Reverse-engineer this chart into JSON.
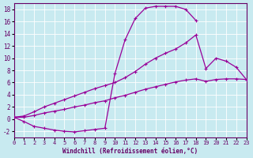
{
  "bg_color": "#c8eaf0",
  "line_color": "#990099",
  "grid_color": "#ffffff",
  "xlim": [
    0,
    23
  ],
  "ylim": [
    -3,
    19
  ],
  "xticks": [
    0,
    1,
    2,
    3,
    4,
    5,
    6,
    7,
    8,
    9,
    10,
    11,
    12,
    13,
    14,
    15,
    16,
    17,
    18,
    19,
    20,
    21,
    22,
    23
  ],
  "yticks": [
    -2,
    0,
    2,
    4,
    6,
    8,
    10,
    12,
    14,
    16,
    18
  ],
  "xlabel": "Windchill (Refroidissement éolien,°C)",
  "curve1_x": [
    0,
    1,
    2,
    3,
    4,
    5,
    6,
    7,
    8,
    9,
    10,
    11,
    12,
    13,
    14,
    15,
    16,
    17,
    18
  ],
  "curve1_y": [
    0.3,
    -0.4,
    -1.2,
    -1.5,
    -1.8,
    -2.0,
    -2.1,
    -1.9,
    -1.7,
    -1.5,
    7.5,
    13.0,
    16.5,
    18.2,
    18.5,
    18.5,
    18.5,
    18.0,
    16.2
  ],
  "curve2_x": [
    0,
    1,
    2,
    3,
    4,
    5,
    6,
    7,
    8,
    9,
    10,
    11,
    12,
    13,
    14,
    15,
    16,
    17,
    18,
    19,
    20,
    21,
    22,
    23
  ],
  "curve2_y": [
    0.3,
    0.5,
    1.2,
    2.0,
    2.6,
    3.2,
    3.8,
    4.4,
    5.0,
    5.5,
    6.0,
    6.8,
    7.8,
    9.0,
    10.0,
    10.8,
    11.5,
    12.5,
    13.8,
    8.3,
    10.0,
    9.5,
    8.5,
    6.5
  ],
  "curve3_x": [
    0,
    1,
    2,
    3,
    4,
    5,
    6,
    7,
    8,
    9,
    10,
    11,
    12,
    13,
    14,
    15,
    16,
    17,
    18,
    19,
    20,
    21,
    22,
    23
  ],
  "curve3_y": [
    0.3,
    0.3,
    0.6,
    1.0,
    1.3,
    1.6,
    2.0,
    2.3,
    2.7,
    3.0,
    3.5,
    3.9,
    4.4,
    4.9,
    5.3,
    5.7,
    6.1,
    6.4,
    6.6,
    6.2,
    6.5,
    6.6,
    6.6,
    6.5
  ],
  "xlabel_fontsize": 5.5,
  "tick_fontsize": 5.0,
  "linewidth": 0.9,
  "markersize": 2.5
}
